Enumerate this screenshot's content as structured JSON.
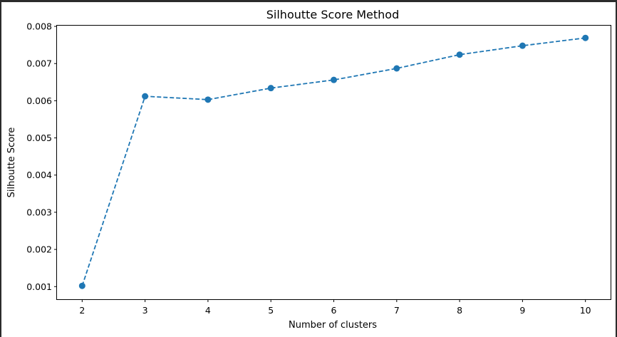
{
  "chart_data": {
    "type": "line",
    "title": "Silhoutte Score Method",
    "xlabel": "Number of clusters",
    "ylabel": "Silhoutte Score",
    "x": [
      2,
      3,
      4,
      5,
      6,
      7,
      8,
      9,
      10
    ],
    "x_ticks": [
      "2",
      "3",
      "4",
      "5",
      "6",
      "7",
      "8",
      "9",
      "10"
    ],
    "y_ticks": [
      "0.001",
      "0.002",
      "0.003",
      "0.004",
      "0.005",
      "0.006",
      "0.007",
      "0.008"
    ],
    "xlim": [
      1.6,
      10.4
    ],
    "ylim": [
      0.00066,
      0.00802
    ],
    "grid": false,
    "series": [
      {
        "values": [
          0.00102,
          0.00612,
          0.00603,
          0.00634,
          0.00656,
          0.00687,
          0.00724,
          0.00748,
          0.00769
        ],
        "line_style": "dashed",
        "marker": "circle",
        "color": "#1f77b4"
      }
    ]
  }
}
